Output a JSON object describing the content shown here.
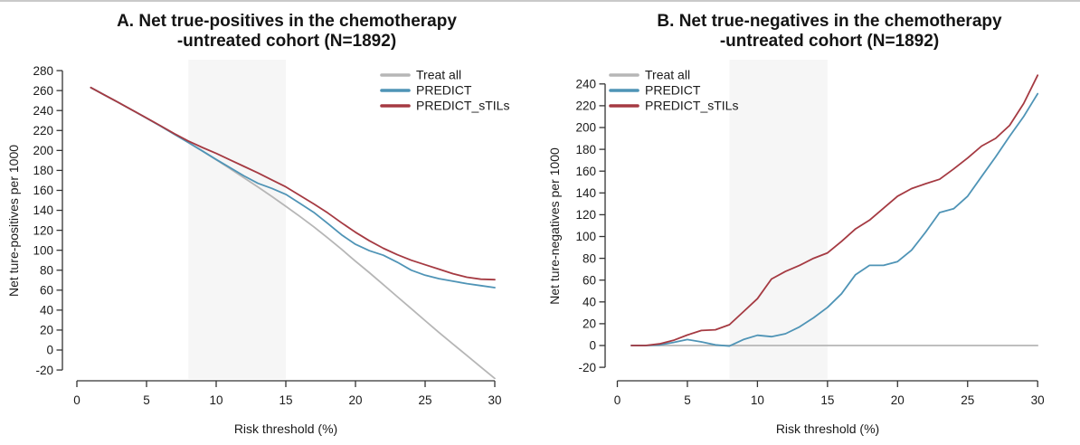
{
  "window": {
    "top_border_color": "#c9c9c9",
    "background": "#ffffff"
  },
  "chart_data": [
    {
      "type": "line",
      "panel": "A",
      "title_line1": "A. Net true-positives in the chemotherapy",
      "title_line2": "-untreated cohort (N=1892)",
      "xlabel": "Risk threshold (%)",
      "ylabel": "Net ture-positives per 1000",
      "x_ticks": [
        0,
        5,
        10,
        15,
        20,
        25,
        30
      ],
      "y_ticks": [
        -20,
        0,
        20,
        40,
        60,
        80,
        100,
        120,
        140,
        160,
        180,
        200,
        220,
        240,
        260,
        280
      ],
      "xlim": [
        0,
        30
      ],
      "ylim": [
        -20,
        280
      ],
      "grid": false,
      "highlight_band_x": [
        8,
        15
      ],
      "band_color": "#f6f6f6",
      "legend_position": "top-right",
      "x": [
        1,
        2,
        3,
        4,
        5,
        6,
        7,
        8,
        9,
        10,
        11,
        12,
        13,
        14,
        15,
        16,
        17,
        18,
        19,
        20,
        21,
        22,
        23,
        24,
        25,
        26,
        27,
        28,
        29,
        30
      ],
      "series": [
        {
          "name": "Treat all",
          "color": "#b6b6b6",
          "values": [
            263,
            255.4,
            247.9,
            240.2,
            232.4,
            224.4,
            216.2,
            207.9,
            199.4,
            190.7,
            181.7,
            172.6,
            163.3,
            153.8,
            144,
            134,
            123.5,
            112.5,
            101,
            89,
            77.5,
            65.5,
            53.5,
            41.5,
            29.5,
            17.5,
            6,
            -5.5,
            -17,
            -28.5
          ]
        },
        {
          "name": "PREDICT",
          "color": "#4f94b6",
          "values": [
            263,
            255.4,
            247.9,
            240.2,
            232.4,
            224.4,
            216.2,
            208,
            199.6,
            191,
            182.7,
            174.5,
            167,
            162,
            156,
            147,
            138,
            127,
            115.5,
            106,
            99.5,
            95,
            88,
            80,
            75,
            71.5,
            69,
            66.5,
            64.5,
            62.5
          ]
        },
        {
          "name": "PREDICT_sTILs",
          "color": "#a53a42",
          "values": [
            263,
            255.4,
            248,
            240.3,
            232.6,
            224.8,
            216.8,
            209.5,
            203,
            197,
            190.5,
            184,
            177.5,
            170.5,
            163.5,
            155,
            146.5,
            137.5,
            127.5,
            118,
            109.5,
            102,
            95.5,
            90,
            85.5,
            81,
            76.5,
            73,
            71,
            70.5
          ]
        }
      ]
    },
    {
      "type": "line",
      "panel": "B",
      "title_line1": "B. Net true-negatives in the chemotherapy",
      "title_line2": "-untreated cohort (N=1892)",
      "xlabel": "Risk threshold (%)",
      "ylabel": "Net ture-negatives per 1000",
      "x_ticks": [
        0,
        5,
        10,
        15,
        20,
        25,
        30
      ],
      "y_ticks": [
        -20,
        0,
        20,
        40,
        60,
        80,
        100,
        120,
        140,
        160,
        180,
        200,
        220,
        240
      ],
      "xlim": [
        0,
        30
      ],
      "ylim": [
        -20,
        240
      ],
      "grid": false,
      "highlight_band_x": [
        8,
        15
      ],
      "band_color": "#f6f6f6",
      "legend_position": "top-left",
      "x": [
        1,
        2,
        3,
        4,
        5,
        6,
        7,
        8,
        9,
        10,
        11,
        12,
        13,
        14,
        15,
        16,
        17,
        18,
        19,
        20,
        21,
        22,
        23,
        24,
        25,
        26,
        27,
        28,
        29,
        30
      ],
      "series": [
        {
          "name": "Treat all",
          "color": "#b6b6b6",
          "values": [
            0,
            0,
            0,
            0,
            0,
            0,
            0,
            0,
            0,
            0,
            0,
            0,
            0,
            0,
            0,
            0,
            0,
            0,
            0,
            0,
            0,
            0,
            0,
            0,
            0,
            0,
            0,
            0,
            0,
            0
          ]
        },
        {
          "name": "PREDICT",
          "color": "#4f94b6",
          "values": [
            0,
            0,
            0.5,
            2.8,
            5.5,
            3.3,
            0.6,
            -0.5,
            5.5,
            9.4,
            8.1,
            10.8,
            17.1,
            25.4,
            35,
            47.5,
            65,
            73.5,
            73.5,
            77,
            87.5,
            104,
            122,
            125.5,
            137,
            155,
            173,
            192,
            210,
            231
          ]
        },
        {
          "name": "PREDICT_sTILs",
          "color": "#a53a42",
          "values": [
            0,
            0,
            1.5,
            4.7,
            9.6,
            13.8,
            14.4,
            19.1,
            31,
            43,
            61,
            68,
            73.5,
            80,
            85,
            95.5,
            107,
            115,
            126,
            137,
            144,
            148.5,
            152.5,
            162,
            172,
            183,
            190,
            202,
            222,
            248
          ]
        }
      ]
    }
  ]
}
